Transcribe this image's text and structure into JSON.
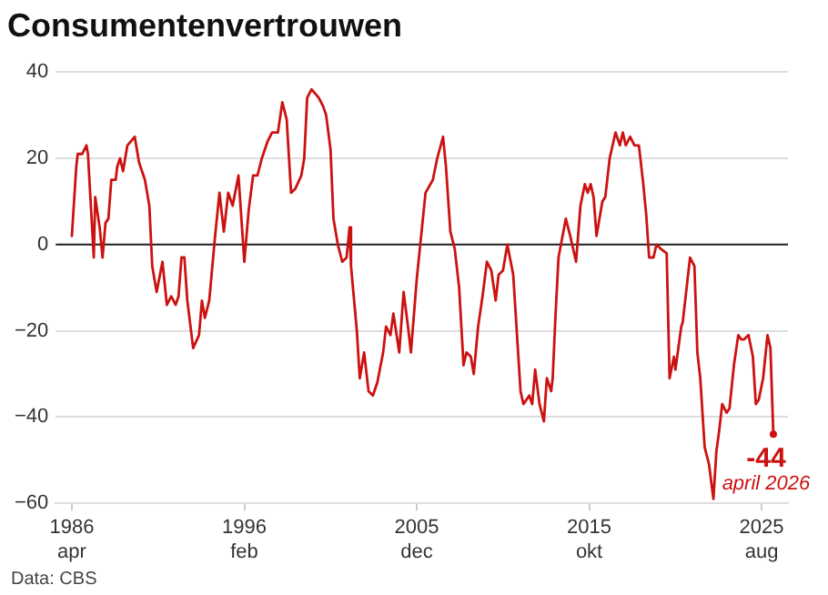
{
  "chart_data": {
    "type": "line",
    "title": "Consumentenvertrouwen",
    "x": [
      "1986-04",
      "1986-07",
      "1986-08",
      "1986-11",
      "1987-02",
      "1987-03",
      "1987-05",
      "1987-07",
      "1987-08",
      "1987-11",
      "1988-01",
      "1988-03",
      "1988-05",
      "1988-07",
      "1988-10",
      "1988-11",
      "1989-01",
      "1989-03",
      "1989-06",
      "1989-11",
      "1990-02",
      "1990-06",
      "1990-09",
      "1990-11",
      "1991-02",
      "1991-06",
      "1991-09",
      "1991-12",
      "1992-03",
      "1992-05",
      "1992-07",
      "1992-09",
      "1992-11",
      "1993-03",
      "1993-07",
      "1993-09",
      "1993-11",
      "1994-02",
      "1994-06",
      "1994-09",
      "1994-12",
      "1995-03",
      "1995-06",
      "1995-10",
      "1996-02",
      "1996-05",
      "1996-08",
      "1996-11",
      "1997-02",
      "1997-06",
      "1997-09",
      "1998-01",
      "1998-04",
      "1998-07",
      "1998-10",
      "1999-01",
      "1999-05",
      "1999-07",
      "1999-09",
      "1999-12",
      "2000-05",
      "2000-08",
      "2000-10",
      "2001-01",
      "2001-03",
      "2001-06",
      "2001-09",
      "2001-12",
      "2002-02",
      "2002-03",
      "2002-07",
      "2002-09",
      "2002-12",
      "2003-03",
      "2003-06",
      "2003-09",
      "2004-01",
      "2004-03",
      "2004-06",
      "2004-08",
      "2004-12",
      "2005-03",
      "2005-06",
      "2005-08",
      "2005-12",
      "2006-03",
      "2006-06",
      "2006-11",
      "2007-02",
      "2007-06",
      "2007-08",
      "2007-11",
      "2008-02",
      "2008-05",
      "2008-08",
      "2008-10",
      "2009-01",
      "2009-03",
      "2009-06",
      "2009-09",
      "2009-12",
      "2010-03",
      "2010-06",
      "2010-08",
      "2010-11",
      "2011-02",
      "2011-06",
      "2011-11",
      "2012-01",
      "2012-05",
      "2012-07",
      "2012-09",
      "2012-12",
      "2013-03",
      "2013-05",
      "2013-08",
      "2013-09",
      "2013-11",
      "2014-01",
      "2014-06",
      "2014-09",
      "2014-11",
      "2015-01",
      "2015-04",
      "2015-07",
      "2015-09",
      "2015-11",
      "2016-01",
      "2016-03",
      "2016-07",
      "2016-09",
      "2016-12",
      "2017-04",
      "2017-07",
      "2017-09",
      "2017-11",
      "2018-02",
      "2018-05",
      "2018-08",
      "2018-11",
      "2019-01",
      "2019-03",
      "2019-06",
      "2019-08",
      "2019-11",
      "2020-03",
      "2020-05",
      "2020-08",
      "2020-09",
      "2021-01",
      "2021-02",
      "2021-05",
      "2021-07",
      "2021-10",
      "2021-12",
      "2022-02",
      "2022-05",
      "2022-08",
      "2022-11",
      "2023-01",
      "2023-03",
      "2023-05",
      "2023-08",
      "2023-10",
      "2024-01",
      "2024-04",
      "2024-06",
      "2024-08",
      "2024-11",
      "2025-02",
      "2025-04",
      "2025-06",
      "2025-09",
      "2025-12",
      "2026-02",
      "2026-04"
    ],
    "series": [
      {
        "color": "#cc1111",
        "values": [
          2,
          18,
          21,
          21,
          23,
          21,
          9,
          -3,
          11,
          4,
          -3,
          5,
          6,
          15,
          15,
          18,
          20,
          17,
          23,
          25,
          19,
          15,
          9,
          -5,
          -11,
          -4,
          -14,
          -12,
          -14,
          -12,
          -3,
          -3,
          -13,
          -24,
          -21,
          -13,
          -17,
          -13,
          2,
          12,
          3,
          12,
          9,
          16,
          -4,
          8,
          16,
          16,
          20,
          24,
          26,
          26,
          33,
          29,
          12,
          13,
          16,
          20,
          34,
          36,
          34,
          32,
          30,
          22,
          6,
          0,
          -4,
          -3,
          4,
          -5,
          -20,
          -31,
          -25,
          -34,
          -35,
          -32,
          -25,
          -19,
          -21,
          -16,
          -25,
          -11,
          -19,
          -25,
          -8,
          2,
          12,
          15,
          20,
          25,
          18,
          3,
          -1,
          -10,
          -28,
          -25,
          -26,
          -30,
          -19,
          -12,
          -4,
          -6,
          -13,
          -7,
          -6,
          0,
          -7,
          -34,
          -37,
          -35,
          -37,
          -29,
          -37,
          -41,
          -31,
          -34,
          -31,
          -16,
          -3,
          6,
          2,
          -1,
          -4,
          9,
          14,
          12,
          14,
          11,
          2,
          10,
          11,
          20,
          26,
          23,
          26,
          23,
          25,
          23,
          23,
          14,
          7,
          -3,
          -3,
          0,
          -1,
          -2,
          -31,
          -26,
          -29,
          -19,
          -18,
          -9,
          -3,
          -5,
          -25,
          -31,
          -47,
          -51,
          -59,
          -48,
          -43,
          -37,
          -39,
          -38,
          -28,
          -21,
          -22,
          -22,
          -21,
          -26,
          -37,
          -36,
          -31,
          -21,
          -24,
          -44
        ]
      }
    ],
    "xlim": [
      "1985-05",
      "2027-02"
    ],
    "xticks": [
      {
        "value": "1986-04",
        "label": "1986\napr"
      },
      {
        "value": "1996-02",
        "label": "1996\nfeb"
      },
      {
        "value": "2005-12",
        "label": "2005\ndec"
      },
      {
        "value": "2015-10",
        "label": "2015\nokt"
      },
      {
        "value": "2025-08",
        "label": "2025\naug"
      }
    ],
    "ylim": [
      -60,
      40
    ],
    "yticks": [
      -60,
      -40,
      -20,
      0,
      20,
      40
    ],
    "grid": "y",
    "line_style": "solid",
    "ref_lines": [
      {
        "axis": "y",
        "value": 0,
        "color": "#222222"
      }
    ],
    "annotations": [
      {
        "text": "-44",
        "x": "2026-04",
        "y": -44
      },
      {
        "text": "april 2026",
        "x": "2026-04",
        "y": -44
      },
      "Data: CBS"
    ]
  }
}
